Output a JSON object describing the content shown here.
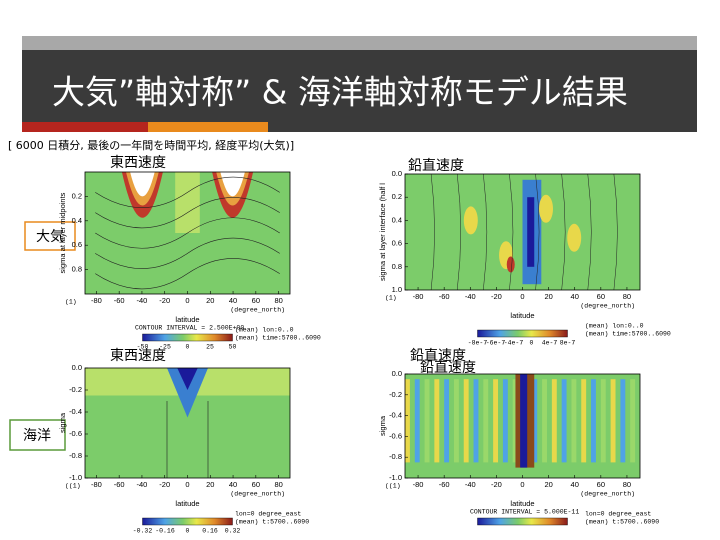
{
  "header": {
    "title": "大気”軸対称” & 海洋軸対称モデル結果"
  },
  "subtitle": "[ 6000  日積分, 最後の一年間を時間平均, 経度平均(大気)]",
  "row_labels": [
    "大気",
    "海洋"
  ],
  "panels": [
    {
      "label": "東西速度",
      "ylabel": "sigma at layer midpoints",
      "yticks": [
        "0.2",
        "0.4",
        "0.6",
        "0.8"
      ],
      "xticks": [
        "-80",
        "-60",
        "-40",
        "-20",
        "0",
        "20",
        "40",
        "60",
        "80"
      ],
      "corner": "(1)",
      "xunit": "(degree_north)",
      "xlabel": "latitude",
      "interval": "CONTOUR INTERVAL = 2.500E+00",
      "colorbar": [
        "-50",
        "-25",
        "0",
        "25",
        "50"
      ],
      "notes": [
        "(mean) lon:0..0",
        "(mean) time:5700..6090"
      ]
    },
    {
      "label": "鉛直速度",
      "ylabel": "sigma at layer interface (half l",
      "yticks": [
        "0.0",
        "0.2",
        "0.4",
        "0.6",
        "0.8",
        "1.0"
      ],
      "xticks": [
        "-80",
        "-60",
        "-40",
        "-20",
        "0",
        "20",
        "40",
        "60",
        "80"
      ],
      "corner": "(1)",
      "xunit": "(degree_north)",
      "xlabel": "latitude",
      "colorbar": [
        "-8e-7",
        "-6e-7",
        "-4e-7",
        "0",
        "4e-7",
        "8e-7"
      ],
      "notes": [
        "(mean) lon:0..0",
        "(mean) time:5700..6090"
      ]
    },
    {
      "label": "東西速度",
      "ylabel": "sigma",
      "yticks": [
        "0.0",
        "-0.2",
        "-0.4",
        "-0.6",
        "-0.8",
        "-1.0"
      ],
      "xticks": [
        "-80",
        "-60",
        "-40",
        "-20",
        "0",
        "20",
        "40",
        "60",
        "80"
      ],
      "corner": "((1)",
      "xunit": "(degree_north)",
      "xlabel": "latitude",
      "colorbar": [
        "-0.32",
        "-0.16",
        "0",
        "0.16",
        "0.32"
      ],
      "notes": [
        "lon=0 degree_east",
        "(mean) t:5700..6090"
      ]
    },
    {
      "label": "鉛直速度",
      "label2": "鉛直速度",
      "ylabel": "sigma",
      "yticks": [
        "0.0",
        "-0.2",
        "-0.4",
        "-0.6",
        "-0.8",
        "-1.0"
      ],
      "xticks": [
        "-80",
        "-60",
        "-40",
        "-20",
        "0",
        "20",
        "40",
        "60",
        "80"
      ],
      "corner": "((1)",
      "xunit": "(degree_north)",
      "xlabel": "latitude",
      "interval": "CONTOUR INTERVAL = 5.000E-11",
      "notes": [
        "lon=0 degree_east",
        "(mean) t:5700..6090"
      ]
    }
  ]
}
